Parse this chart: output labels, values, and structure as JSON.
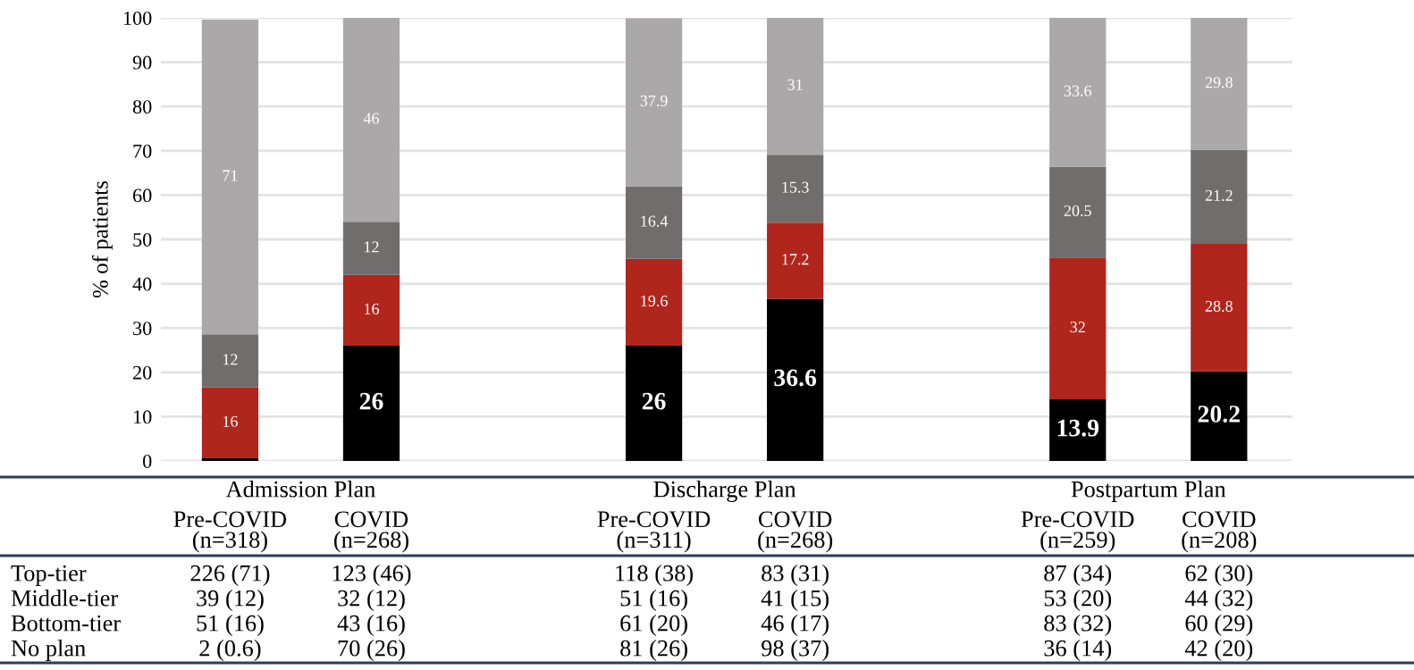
{
  "chart_data": {
    "type": "bar",
    "stacked": true,
    "ylabel": "% of patients",
    "categories": [
      "Pre-COVID\n(n=318)",
      "COVID\n(n=268)",
      "Pre-COVID\n(n=311)",
      "COVID\n(n=268)",
      "Pre-COVID\n(n=259)",
      "COVID\n(n=208)"
    ],
    "series": [
      {
        "color": "#000000",
        "values": [
          0.6,
          26,
          26,
          36.6,
          13.9,
          20.2
        ],
        "value_labels": [
          null,
          "26",
          "26",
          "36.6",
          "13.9",
          "20.2"
        ]
      },
      {
        "color": "#b0261c",
        "values": [
          16,
          16,
          19.6,
          17.2,
          32,
          28.8
        ],
        "value_labels": [
          "16",
          "16",
          "19.6",
          "17.2",
          "32",
          "28.8"
        ]
      },
      {
        "color": "#716d6d",
        "values": [
          12,
          12,
          16.4,
          15.3,
          20.5,
          21.2
        ],
        "value_labels": [
          "12",
          "12",
          "16.4",
          "15.3",
          "20.5",
          "21.2"
        ]
      },
      {
        "color": "#aba8a9",
        "values": [
          71,
          46,
          37.9,
          31,
          33.6,
          29.8
        ],
        "value_labels": [
          "71",
          "46",
          "37.9",
          "31",
          "33.6",
          "29.8"
        ]
      }
    ],
    "ylim": [
      0,
      100
    ],
    "yticks": [
      0,
      10,
      20,
      30,
      40,
      50,
      60,
      70,
      80,
      90,
      100
    ],
    "grid": "y",
    "legend": false,
    "annotations": [
      "Admission Plan",
      "Discharge Plan",
      "Postpartum Plan",
      "Top-tier",
      "226 (71)",
      "123 (46)",
      "118 (38)",
      "83 (31)",
      "87 (34)",
      "62 (30)",
      "Middle-tier",
      "39 (12)",
      "32 (12)",
      "51 (16)",
      "41 (15)",
      "53 (20)",
      "44 (32)",
      "Bottom-tier",
      "51 (16)",
      "43 (16)",
      "61 (20)",
      "46 (17)",
      "83 (32)",
      "60 (29)",
      "No plan",
      "2 (0.6)",
      "70 (26)",
      "81 (26)",
      "98 (37)",
      "36 (14)",
      "42 (20)"
    ]
  }
}
